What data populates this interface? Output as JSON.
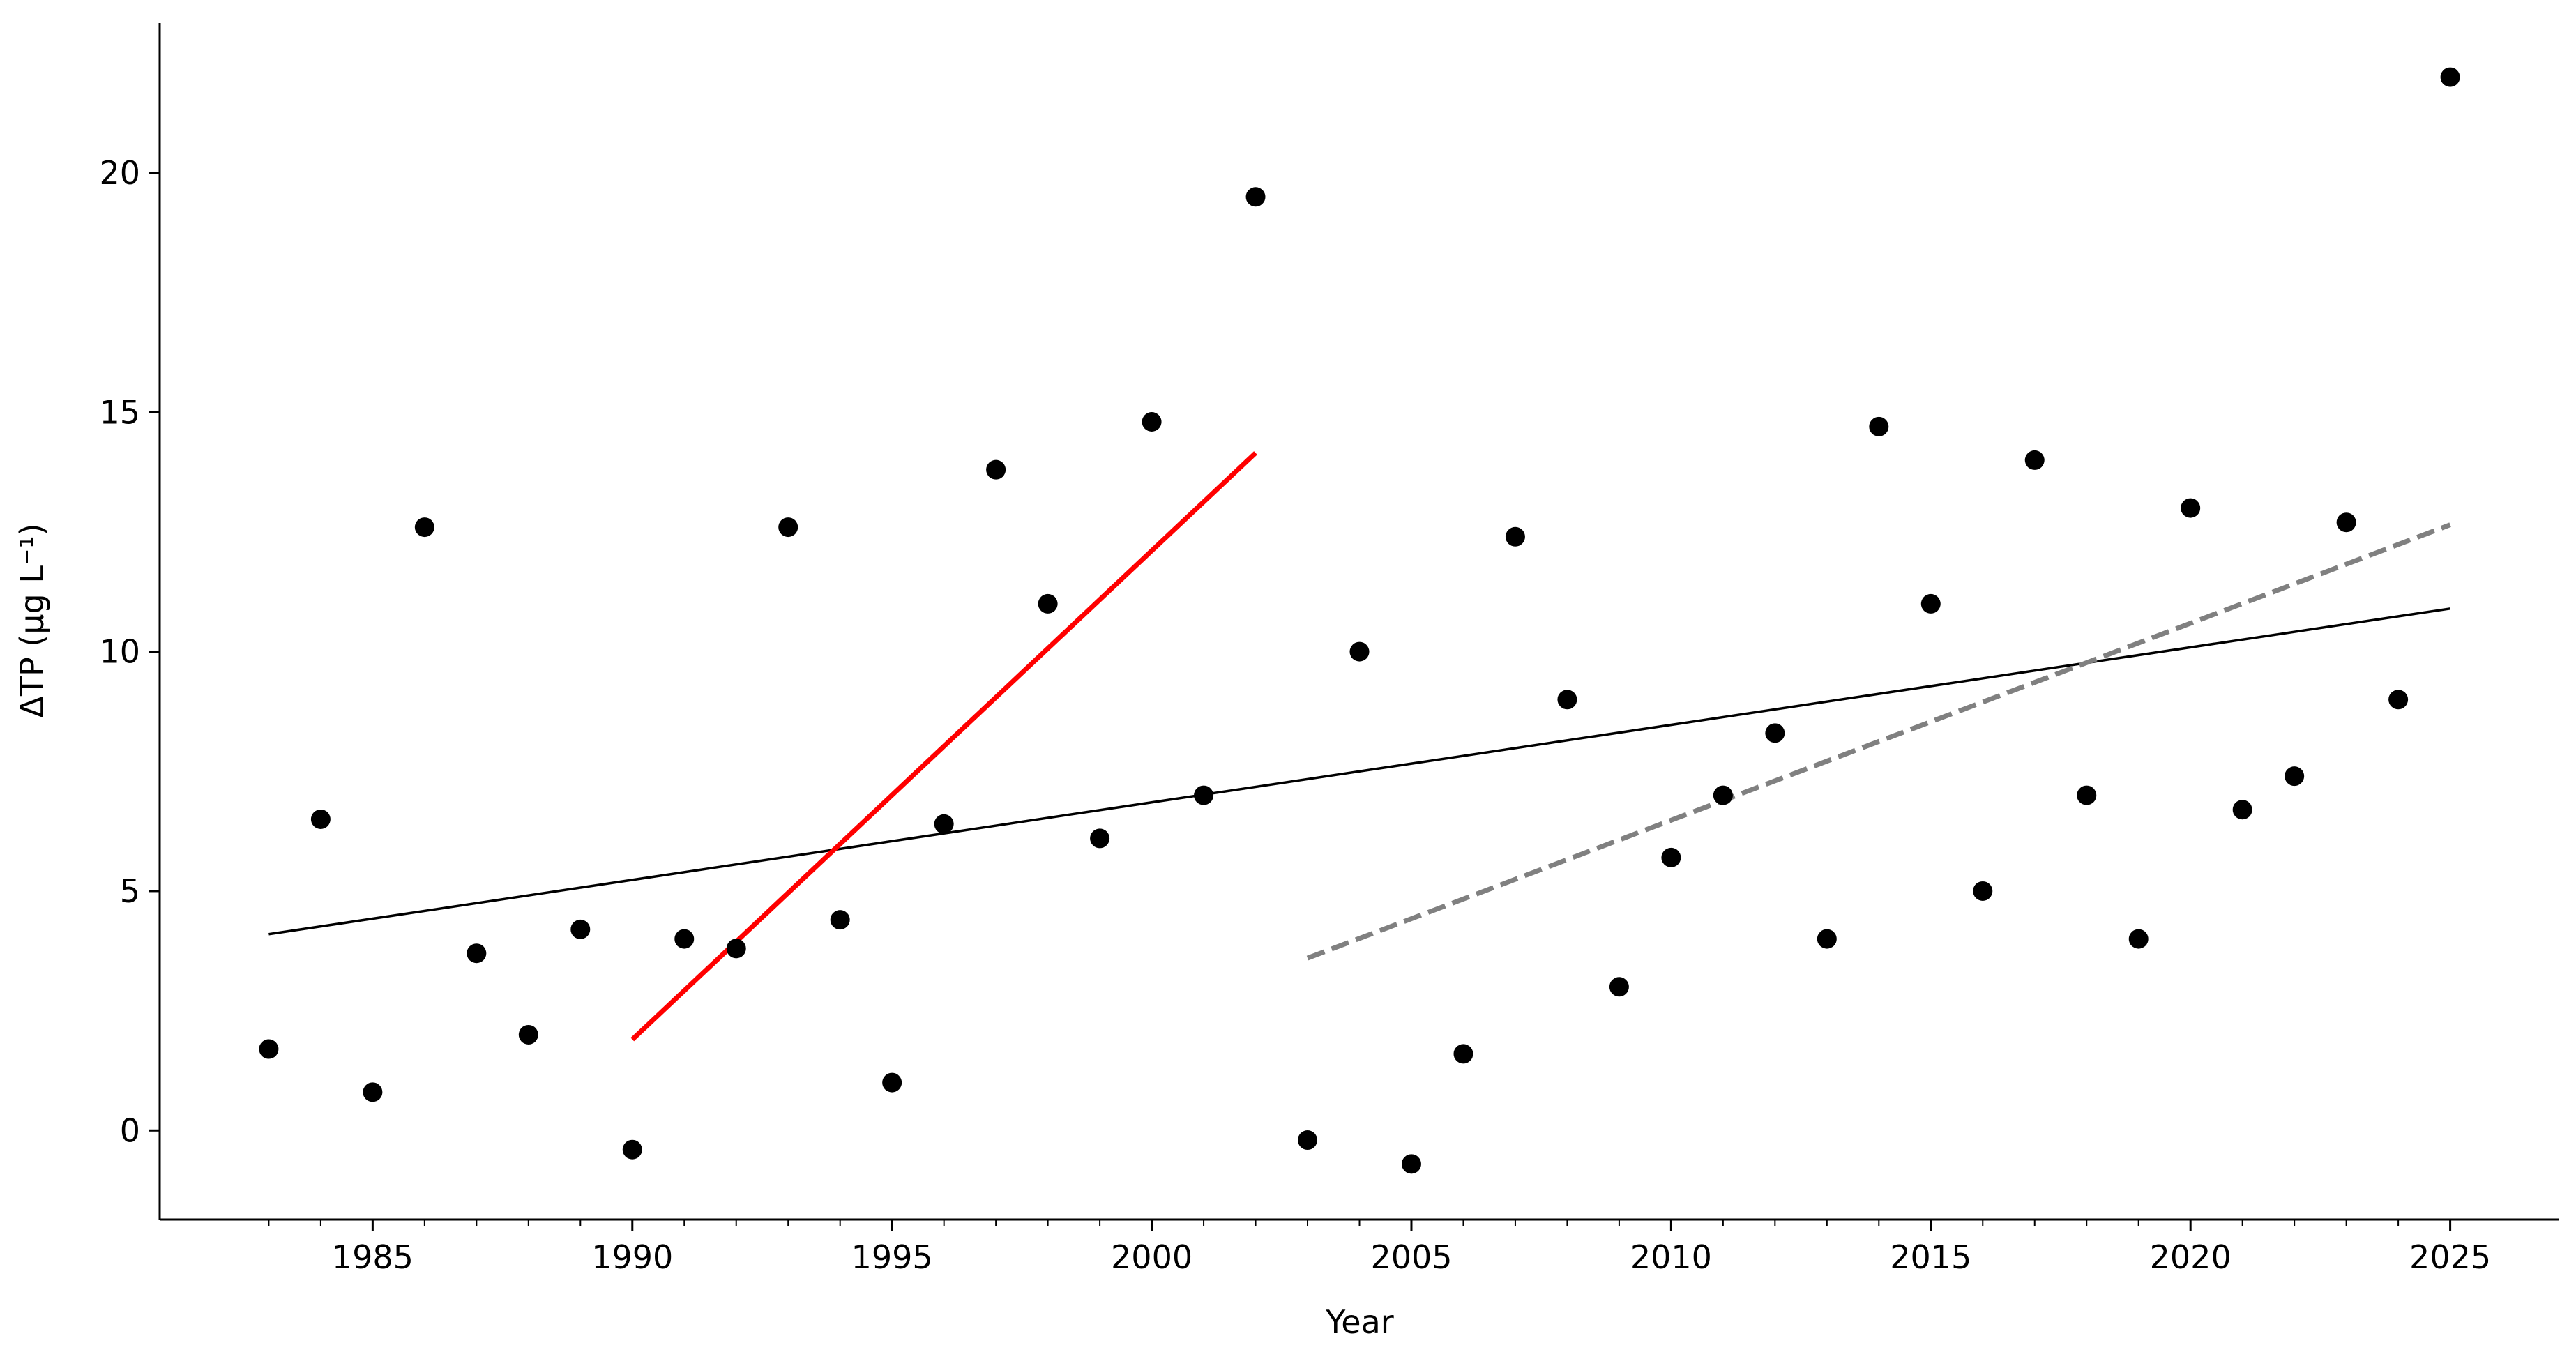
{
  "chart_data": {
    "type": "scatter",
    "xlabel": "Year",
    "ylabel": "ΔTP (µg L⁻¹)",
    "x": [
      1983,
      1984,
      1985,
      1986,
      1987,
      1988,
      1989,
      1990,
      1991,
      1992,
      1993,
      1994,
      1995,
      1996,
      1997,
      1998,
      1999,
      2000,
      2001,
      2002,
      2003,
      2004,
      2005,
      2006,
      2007,
      2008,
      2009,
      2010,
      2011,
      2012,
      2013,
      2014,
      2015,
      2016,
      2017,
      2018,
      2019,
      2020,
      2021,
      2022,
      2023,
      2024,
      2025
    ],
    "values": [
      1.7,
      6.5,
      0.8,
      12.6,
      3.7,
      2.0,
      4.2,
      -0.4,
      4.0,
      3.8,
      12.6,
      4.4,
      1.0,
      6.4,
      13.8,
      11.0,
      6.1,
      14.8,
      7.0,
      19.5,
      -0.2,
      10.0,
      -0.7,
      1.6,
      12.4,
      9.0,
      3.0,
      5.7,
      7.0,
      8.3,
      4.0,
      14.7,
      11.0,
      5.0,
      14.0,
      7.0,
      4.0,
      13.0,
      6.7,
      7.4,
      12.7,
      9.0,
      22.0
    ],
    "color": "#000000",
    "lines": [
      {
        "x": [
          1983,
          2025
        ],
        "values": [
          4.1,
          10.9
        ],
        "color": "#000000",
        "style": "solid"
      },
      {
        "x": [
          1990,
          2002
        ],
        "values": [
          1.9,
          14.15
        ],
        "color": "#ff0000",
        "style": "solid"
      },
      {
        "x": [
          2003,
          2025
        ],
        "values": [
          3.6,
          12.65
        ],
        "color": "#808080",
        "style": "dashed"
      }
    ],
    "xlim": [
      1980.9,
      2027.1
    ],
    "ylim": [
      -1.86,
      23.13
    ],
    "xticks": [
      1985,
      1990,
      1995,
      2000,
      2005,
      2010,
      2015,
      2020,
      2025
    ],
    "yticks": [
      0,
      5,
      10,
      15,
      20
    ]
  }
}
